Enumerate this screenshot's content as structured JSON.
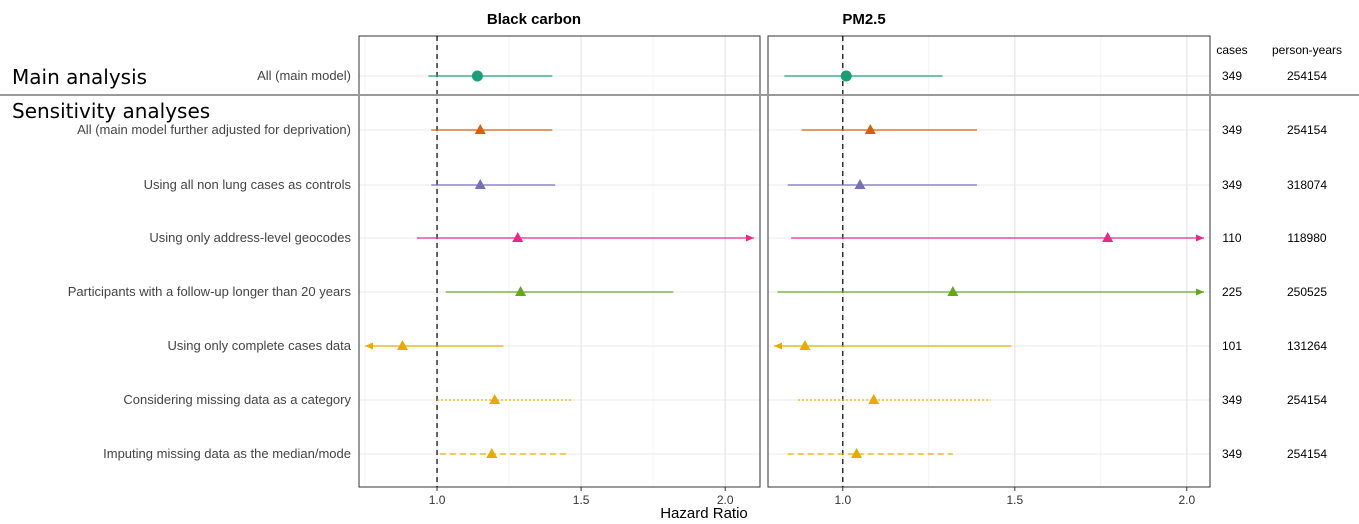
{
  "chart_data": {
    "type": "forest",
    "xlabel": "Hazard Ratio",
    "reference_line": 1.0,
    "panels": [
      {
        "title": "Black carbon",
        "xlim": [
          0.75,
          2.1
        ],
        "ticks": [
          1.0,
          1.5,
          2.0
        ],
        "tick_labels": [
          "1.0",
          "1.5",
          "2.0"
        ]
      },
      {
        "title": "PM2.5",
        "xlim": [
          0.8,
          2.05
        ],
        "ticks": [
          1.0,
          1.5,
          2.0
        ],
        "tick_labels": [
          "1.0",
          "1.5",
          "2.0"
        ]
      }
    ],
    "sections": [
      {
        "label": "Main analysis"
      },
      {
        "label": "Sensitivity analyses"
      }
    ],
    "columns": {
      "cases": "cases",
      "person_years": "person-years"
    },
    "rows": [
      {
        "label": "All (main model)",
        "cases": "349",
        "person_years": "254154",
        "color": "#1b9e77",
        "marker": "circle",
        "linestyle": "solid",
        "bc": {
          "hr": 1.14,
          "lo": 0.97,
          "hi": 1.4
        },
        "pm25": {
          "hr": 1.01,
          "lo": 0.83,
          "hi": 1.29
        }
      },
      {
        "label": "All (main model further adjusted for deprivation)",
        "cases": "349",
        "person_years": "254154",
        "color": "#d95f02",
        "marker": "triangle",
        "linestyle": "solid",
        "bc": {
          "hr": 1.15,
          "lo": 0.98,
          "hi": 1.4
        },
        "pm25": {
          "hr": 1.08,
          "lo": 0.88,
          "hi": 1.39
        }
      },
      {
        "label": "Using all non lung cases as controls",
        "cases": "349",
        "person_years": "318074",
        "color": "#7570b3",
        "marker": "triangle",
        "linestyle": "solid",
        "bc": {
          "hr": 1.15,
          "lo": 0.98,
          "hi": 1.41
        },
        "pm25": {
          "hr": 1.05,
          "lo": 0.84,
          "hi": 1.39
        }
      },
      {
        "label": "Using only address-level geocodes",
        "cases": "110",
        "person_years": "118980",
        "color": "#e7298a",
        "marker": "triangle",
        "linestyle": "solid",
        "arrow_right_bc": true,
        "arrow_right_pm25": true,
        "bc": {
          "hr": 1.28,
          "lo": 0.93,
          "hi": 2.1
        },
        "pm25": {
          "hr": 1.77,
          "lo": 0.85,
          "hi": 2.05
        }
      },
      {
        "label": "Participants with a follow-up longer than 20 years",
        "cases": "225",
        "person_years": "250525",
        "color": "#66a61e",
        "marker": "triangle",
        "linestyle": "solid",
        "arrow_right_pm25": true,
        "bc": {
          "hr": 1.29,
          "lo": 1.03,
          "hi": 1.82
        },
        "pm25": {
          "hr": 1.32,
          "lo": 0.81,
          "hi": 2.05
        }
      },
      {
        "label": "Using only complete cases data",
        "cases": "101",
        "person_years": "131264",
        "color": "#e6ab02",
        "marker": "triangle",
        "linestyle": "solid",
        "arrow_left_bc": true,
        "arrow_left_pm25": true,
        "bc": {
          "hr": 0.88,
          "lo": 0.75,
          "hi": 1.23
        },
        "pm25": {
          "hr": 0.89,
          "lo": 0.8,
          "hi": 1.49
        }
      },
      {
        "label": "Considering missing data as a category",
        "cases": "349",
        "person_years": "254154",
        "color": "#e6ab02",
        "marker": "triangle",
        "linestyle": "dotted",
        "bc": {
          "hr": 1.2,
          "lo": 1.0,
          "hi": 1.47
        },
        "pm25": {
          "hr": 1.09,
          "lo": 0.87,
          "hi": 1.43
        }
      },
      {
        "label": "Imputing missing data as the median/mode",
        "cases": "349",
        "person_years": "254154",
        "color": "#e6ab02",
        "marker": "triangle",
        "linestyle": "dashed",
        "bc": {
          "hr": 1.19,
          "lo": 1.01,
          "hi": 1.46
        },
        "pm25": {
          "hr": 1.04,
          "lo": 0.84,
          "hi": 1.32
        }
      }
    ]
  }
}
